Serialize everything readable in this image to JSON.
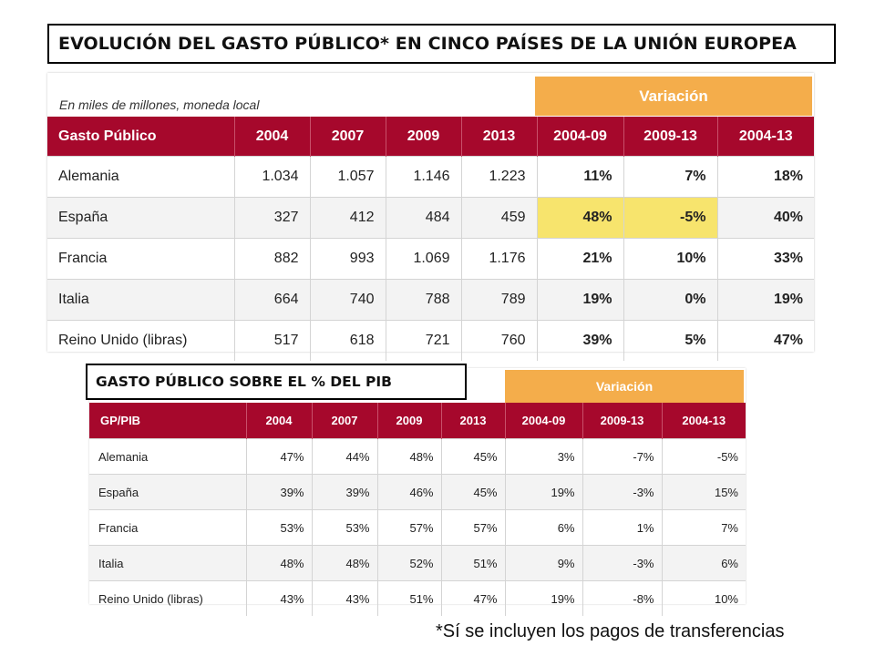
{
  "title_main": "EVOLUCIÓN DEL GASTO PÚBLICO* EN CINCO PAÍSES DE LA UNIÓN EUROPEA",
  "title_second": "GASTO PÚBLICO SOBRE EL % DEL PIB",
  "footnote": "*Sí se incluyen los pagos de transferencias",
  "colors": {
    "header_red": "#a6082c",
    "variation_orange": "#f4ad4b",
    "highlight_yellow": "#f7e46d"
  },
  "table1": {
    "unit_note": "En miles de millones, moneda local",
    "variation_label": "Variación",
    "headers": [
      "Gasto Público",
      "2004",
      "2007",
      "2009",
      "2013",
      "2004-09",
      "2009-13",
      "2004-13"
    ],
    "rows": [
      [
        "Alemania",
        "1.034",
        "1.057",
        "1.146",
        "1.223",
        "11%",
        "7%",
        "18%"
      ],
      [
        "España",
        "327",
        "412",
        "484",
        "459",
        "48%",
        "-5%",
        "40%"
      ],
      [
        "Francia",
        "882",
        "993",
        "1.069",
        "1.176",
        "21%",
        "10%",
        "33%"
      ],
      [
        "Italia",
        "664",
        "740",
        "788",
        "789",
        "19%",
        "0%",
        "19%"
      ],
      [
        "Reino Unido (libras)",
        "517",
        "618",
        "721",
        "760",
        "39%",
        "5%",
        "47%"
      ]
    ]
  },
  "table2": {
    "variation_label": "Variación",
    "headers": [
      "GP/PIB",
      "2004",
      "2007",
      "2009",
      "2013",
      "2004-09",
      "2009-13",
      "2004-13"
    ],
    "rows": [
      [
        "Alemania",
        "47%",
        "44%",
        "48%",
        "45%",
        "3%",
        "-7%",
        "-5%"
      ],
      [
        "España",
        "39%",
        "39%",
        "46%",
        "45%",
        "19%",
        "-3%",
        "15%"
      ],
      [
        "Francia",
        "53%",
        "53%",
        "57%",
        "57%",
        "6%",
        "1%",
        "7%"
      ],
      [
        "Italia",
        "48%",
        "48%",
        "52%",
        "51%",
        "9%",
        "-3%",
        "6%"
      ],
      [
        "Reino Unido (libras)",
        "43%",
        "43%",
        "51%",
        "47%",
        "19%",
        "-8%",
        "10%"
      ]
    ]
  }
}
